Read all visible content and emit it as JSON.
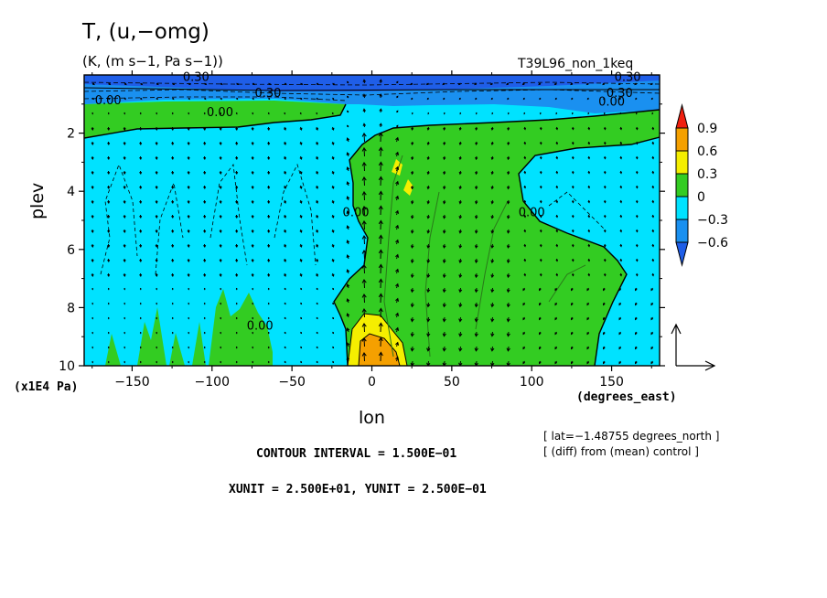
{
  "figure": {
    "title": "T, (u,−omg)",
    "units": "(K, (m s−1, Pa s−1))",
    "experiment": "T39L96_non_1keq",
    "x_axis_units": "(degrees_east)",
    "y_axis_scale": "(x1E4 Pa)",
    "xlabel": "lon",
    "ylabel": "plev",
    "contour_interval": "CONTOUR INTERVAL = 1.500E−01",
    "vector_units": "XUNIT = 2.500E+01, YUNIT = 2.500E−01",
    "lat_note": "[ lat=−1.48755 degrees_north ]",
    "diff_note": "[ (diff) from (mean) control ]"
  },
  "chart_data": {
    "type": "heatmap",
    "subtype": "filled contour with wind vectors",
    "xlim": [
      -180,
      180
    ],
    "ylim": [
      10,
      0
    ],
    "y_inverted": true,
    "x_ticks": [
      -150,
      -100,
      -50,
      0,
      50,
      100,
      150
    ],
    "x_tick_labels": [
      "−150",
      "−100",
      "−50",
      "0",
      "50",
      "100",
      "150"
    ],
    "y_ticks": [
      2,
      4,
      6,
      8,
      10
    ],
    "y_tick_labels": [
      "2",
      "4",
      "6",
      "8",
      "10"
    ],
    "colorbar": {
      "levels": [
        0.9,
        0.6,
        0.3,
        0,
        -0.3,
        -0.6
      ],
      "labels": [
        "0.9",
        "0.6",
        "0.3",
        "0",
        "−0.3",
        "−0.6"
      ],
      "colors": [
        "#f01f0f",
        "#f5a000",
        "#f5ee00",
        "#33cc22",
        "#00e2ff",
        "#1a90f0",
        "#1f5ee8"
      ]
    },
    "contour_labels": [
      {
        "text": "0.00",
        "lon": -165,
        "plev": 0.85
      },
      {
        "text": "0.00",
        "lon": -95,
        "plev": 1.25
      },
      {
        "text": "0.30",
        "lon": -65,
        "plev": 0.6
      },
      {
        "text": "0.30",
        "lon": -110,
        "plev": 0.05
      },
      {
        "text": "0.00",
        "lon": -10,
        "plev": 4.7
      },
      {
        "text": "0.00",
        "lon": 100,
        "plev": 4.7
      },
      {
        "text": "0.00",
        "lon": -70,
        "plev": 8.6
      },
      {
        "text": "0.00",
        "lon": 150,
        "plev": 0.9
      },
      {
        "text": "0.30",
        "lon": 155,
        "plev": 0.6
      },
      {
        "text": "0.30",
        "lon": 160,
        "plev": 0.05
      }
    ]
  }
}
